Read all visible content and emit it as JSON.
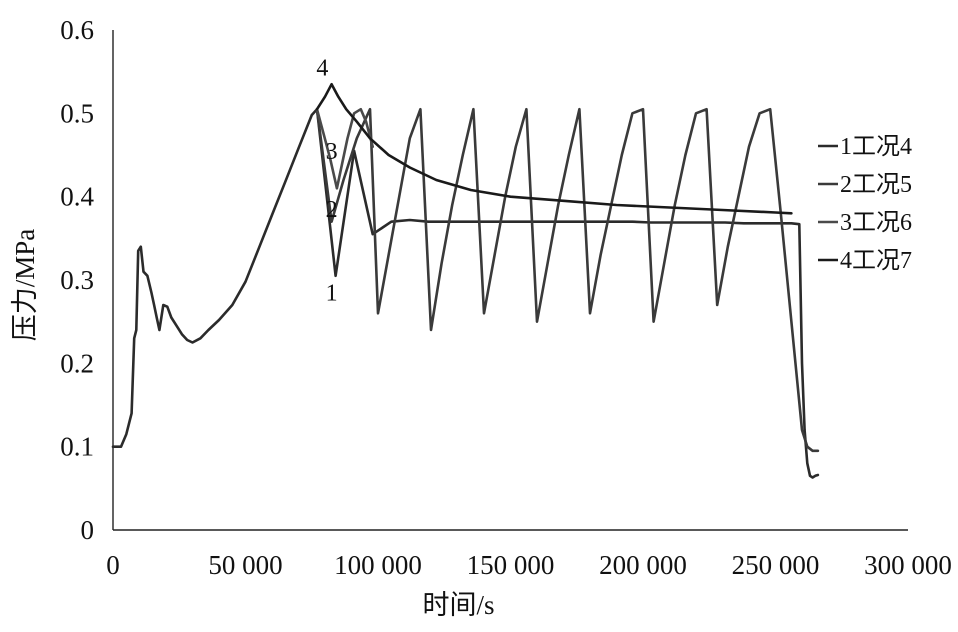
{
  "chart_data": {
    "type": "line",
    "title": "",
    "xlabel": "时间/s",
    "ylabel": "压力/MPa",
    "xlim": [
      0,
      300000
    ],
    "ylim": [
      0,
      0.6
    ],
    "x_ticks": [
      0,
      50000,
      100000,
      150000,
      200000,
      250000,
      300000
    ],
    "x_tick_labels": [
      "0",
      "50 000",
      "100 000",
      "150 000",
      "200 000",
      "250 000",
      "300 000"
    ],
    "y_ticks": [
      0,
      0.1,
      0.2,
      0.3,
      0.4,
      0.5,
      0.6
    ],
    "y_tick_labels": [
      "0",
      "0.1",
      "0.2",
      "0.3",
      "0.4",
      "0.5",
      "0.6"
    ],
    "grid": false,
    "legend_position": "right",
    "colors": {
      "1": "#2b2b2b",
      "2": "#3a3a3a",
      "3": "#4a4a4a",
      "4": "#1a1a1a"
    },
    "curve_labels": [
      {
        "text": "1",
        "x": 82500,
        "y": 0.285
      },
      {
        "text": "2",
        "x": 82500,
        "y": 0.385
      },
      {
        "text": "3",
        "x": 82500,
        "y": 0.455
      },
      {
        "text": "4",
        "x": 79000,
        "y": 0.555
      }
    ],
    "series": [
      {
        "name": "1工况4",
        "x": [
          0,
          3000,
          5000,
          7000,
          8000,
          8800,
          9500,
          10500,
          11500,
          13000,
          14500,
          15500,
          16500,
          17500,
          19000,
          20500,
          22000,
          24000,
          26000,
          28000,
          30000,
          33000,
          36000,
          40000,
          45000,
          50000,
          55000,
          60000,
          65000,
          70000,
          75000,
          77000,
          84000,
          91000,
          98000,
          105000,
          112000,
          119000,
          126000,
          133000,
          140000,
          147000,
          154000,
          161000,
          168000,
          175000,
          182000,
          189000,
          196000,
          203000,
          210000,
          217000,
          224000,
          231000,
          238000,
          245000,
          252000,
          256000,
          259000,
          260000,
          261000,
          262000,
          263000,
          264000,
          265000,
          266000
        ],
        "y": [
          0.1,
          0.1,
          0.115,
          0.14,
          0.23,
          0.24,
          0.335,
          0.34,
          0.31,
          0.305,
          0.285,
          0.27,
          0.255,
          0.24,
          0.27,
          0.268,
          0.255,
          0.245,
          0.235,
          0.228,
          0.225,
          0.23,
          0.24,
          0.252,
          0.27,
          0.298,
          0.338,
          0.378,
          0.418,
          0.458,
          0.498,
          0.505,
          0.305,
          0.455,
          0.355,
          0.37,
          0.372,
          0.37,
          0.37,
          0.37,
          0.37,
          0.37,
          0.37,
          0.37,
          0.37,
          0.37,
          0.37,
          0.37,
          0.37,
          0.369,
          0.369,
          0.369,
          0.369,
          0.369,
          0.368,
          0.368,
          0.368,
          0.368,
          0.367,
          0.2,
          0.12,
          0.08,
          0.065,
          0.063,
          0.065,
          0.066
        ]
      },
      {
        "name": "2工况5",
        "x": [
          77000,
          82500,
          87000,
          92000,
          97000,
          100000,
          104000,
          108000,
          112000,
          116000,
          120000,
          124000,
          128000,
          132000,
          136000,
          140000,
          144000,
          148000,
          152000,
          156000,
          160000,
          164000,
          168000,
          172000,
          176000,
          180000,
          184000,
          188000,
          192000,
          196000,
          200000,
          204000,
          208000,
          212000,
          216000,
          220000,
          224000,
          228000,
          232000,
          236000,
          240000,
          244000,
          248000,
          252000,
          256000,
          260000,
          262000,
          264000,
          266000
        ],
        "y": [
          0.505,
          0.37,
          0.42,
          0.47,
          0.505,
          0.26,
          0.33,
          0.4,
          0.47,
          0.505,
          0.24,
          0.32,
          0.39,
          0.45,
          0.505,
          0.26,
          0.33,
          0.4,
          0.46,
          0.505,
          0.25,
          0.32,
          0.39,
          0.45,
          0.505,
          0.26,
          0.33,
          0.39,
          0.45,
          0.5,
          0.505,
          0.25,
          0.32,
          0.39,
          0.45,
          0.5,
          0.505,
          0.27,
          0.34,
          0.4,
          0.46,
          0.5,
          0.505,
          0.38,
          0.25,
          0.12,
          0.1,
          0.095,
          0.095
        ]
      },
      {
        "name": "3工况6",
        "x": [
          77000,
          79500,
          82000,
          84500,
          86500,
          88500,
          91000,
          93500,
          95500,
          98000
        ],
        "y": [
          0.505,
          0.475,
          0.445,
          0.41,
          0.44,
          0.47,
          0.5,
          0.505,
          0.49,
          0.46
        ]
      },
      {
        "name": "4工况7",
        "x": [
          77000,
          80000,
          82500,
          85000,
          88000,
          92000,
          97000,
          104000,
          112000,
          122000,
          135000,
          150000,
          170000,
          190000,
          210000,
          230000,
          250000,
          256000
        ],
        "y": [
          0.505,
          0.52,
          0.535,
          0.52,
          0.505,
          0.49,
          0.47,
          0.45,
          0.435,
          0.42,
          0.408,
          0.4,
          0.395,
          0.39,
          0.387,
          0.384,
          0.381,
          0.38
        ]
      }
    ]
  }
}
